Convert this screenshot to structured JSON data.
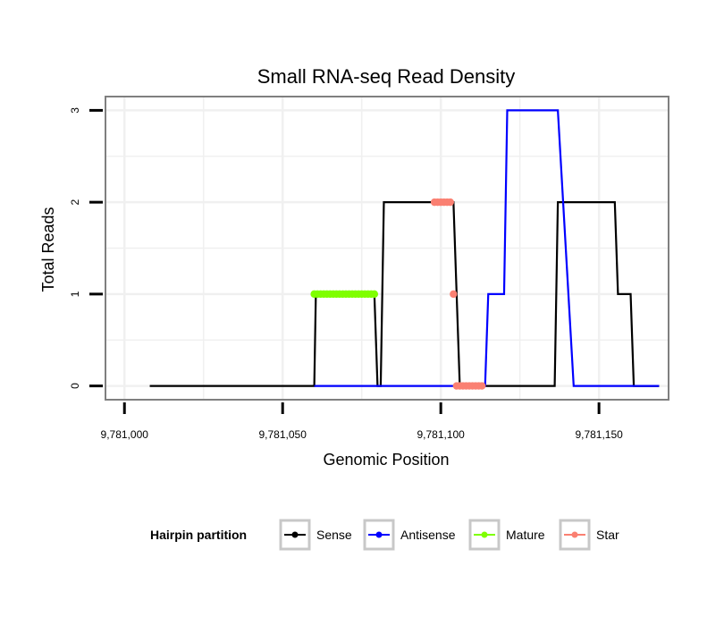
{
  "chart_data": {
    "type": "line",
    "title": "Small RNA-seq Read Density",
    "xlabel": "Genomic Position",
    "ylabel": "Total Reads",
    "xlim": [
      9780994,
      9781172
    ],
    "ylim": [
      -0.15,
      3.15
    ],
    "x_ticks": [
      9781000,
      9781050,
      9781100,
      9781150
    ],
    "x_tick_labels": [
      "9,781,000",
      "9,781,050",
      "9,781,100",
      "9,781,150"
    ],
    "y_ticks": [
      0,
      1,
      2,
      3
    ],
    "y_tick_labels": [
      "0",
      "1",
      "2",
      "3"
    ],
    "grid": true,
    "legend_position": "bottom",
    "legend_title": "Hairpin partition",
    "series": [
      {
        "name": "Sense",
        "color": "#000000",
        "marker": "none",
        "points": [
          [
            9781008,
            0
          ],
          [
            9781060,
            0
          ],
          [
            9781060.5,
            1
          ],
          [
            9781079,
            1
          ],
          [
            9781080,
            0
          ],
          [
            9781081,
            0
          ],
          [
            9781082,
            2
          ],
          [
            9781104,
            2
          ],
          [
            9781106,
            0
          ],
          [
            9781136,
            0
          ],
          [
            9781137,
            2
          ],
          [
            9781155,
            2
          ],
          [
            9781156,
            1
          ],
          [
            9781160,
            1
          ],
          [
            9781161,
            0
          ],
          [
            9781169,
            0
          ]
        ]
      },
      {
        "name": "Antisense",
        "color": "#0000ff",
        "marker": "none",
        "points": [
          [
            9781060,
            0
          ],
          [
            9781114,
            0
          ],
          [
            9781115,
            1
          ],
          [
            9781120,
            1
          ],
          [
            9781121,
            3
          ],
          [
            9781137,
            3
          ],
          [
            9781142,
            0
          ],
          [
            9781169,
            0
          ]
        ]
      },
      {
        "name": "Mature",
        "color": "#7fff00",
        "marker": "dot",
        "points": [
          [
            9781060,
            1
          ],
          [
            9781061,
            1
          ],
          [
            9781062,
            1
          ],
          [
            9781063,
            1
          ],
          [
            9781064,
            1
          ],
          [
            9781065,
            1
          ],
          [
            9781066,
            1
          ],
          [
            9781067,
            1
          ],
          [
            9781068,
            1
          ],
          [
            9781069,
            1
          ],
          [
            9781070,
            1
          ],
          [
            9781071,
            1
          ],
          [
            9781072,
            1
          ],
          [
            9781073,
            1
          ],
          [
            9781074,
            1
          ],
          [
            9781075,
            1
          ],
          [
            9781076,
            1
          ],
          [
            9781077,
            1
          ],
          [
            9781078,
            1
          ],
          [
            9781079,
            1
          ]
        ]
      },
      {
        "name": "Star",
        "color": "#fa8072",
        "marker": "dot",
        "points": [
          [
            9781098,
            2
          ],
          [
            9781099,
            2
          ],
          [
            9781100,
            2
          ],
          [
            9781101,
            2
          ],
          [
            9781102,
            2
          ],
          [
            9781103,
            2
          ],
          [
            9781104,
            1
          ],
          [
            9781105,
            0
          ],
          [
            9781106,
            0
          ],
          [
            9781107,
            0
          ],
          [
            9781108,
            0
          ],
          [
            9781109,
            0
          ],
          [
            9781110,
            0
          ],
          [
            9781111,
            0
          ],
          [
            9781112,
            0
          ],
          [
            9781113,
            0
          ]
        ]
      }
    ]
  }
}
